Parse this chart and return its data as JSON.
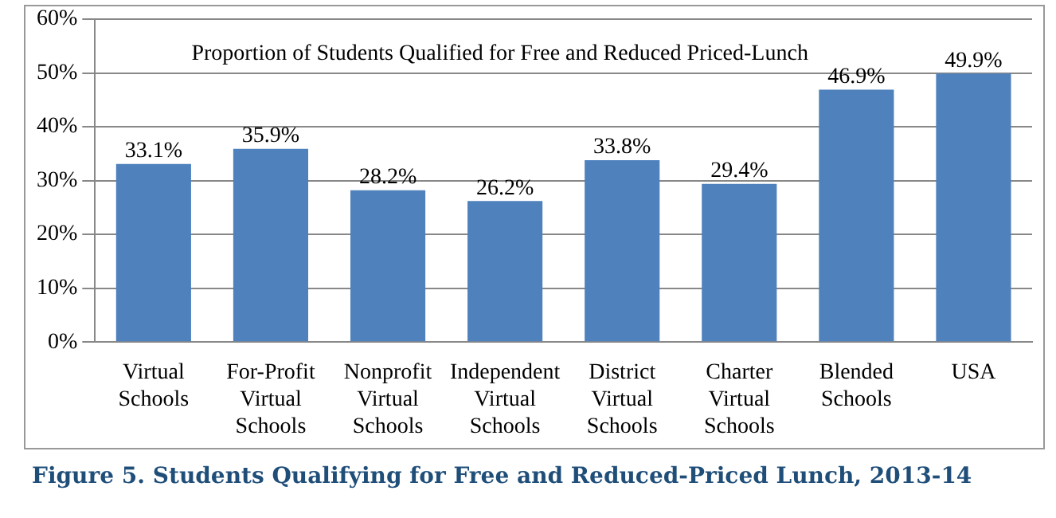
{
  "chart_data": {
    "type": "bar",
    "title": "Proportion of Students Qualified for Free and Reduced Priced-Lunch",
    "annotations": [
      "Figure 5. Students Qualifying for Free and Reduced-Priced Lunch, 2013-14"
    ],
    "categories": [
      "Virtual Schools",
      "For-Profit Virtual Schools",
      "Nonprofit Virtual Schools",
      "Independent Virtual Schools",
      "District Virtual Schools",
      "Charter Virtual Schools",
      "Blended Schools",
      "USA"
    ],
    "values": [
      33.1,
      35.9,
      28.2,
      26.2,
      33.8,
      29.4,
      46.9,
      49.9
    ],
    "value_labels": [
      "33.1%",
      "35.9%",
      "28.2%",
      "26.2%",
      "33.8%",
      "29.4%",
      "46.9%",
      "49.9%"
    ],
    "color": "#4f81bd",
    "ylim": [
      0,
      60
    ],
    "yticks": [
      {
        "value": 0,
        "label": "0%"
      },
      {
        "value": 10,
        "label": "10%"
      },
      {
        "value": 20,
        "label": "20%"
      },
      {
        "value": 30,
        "label": "30%"
      },
      {
        "value": 40,
        "label": "40%"
      },
      {
        "value": 50,
        "label": "50%"
      },
      {
        "value": 60,
        "label": "60%"
      }
    ],
    "grid": "y",
    "legend": false
  }
}
